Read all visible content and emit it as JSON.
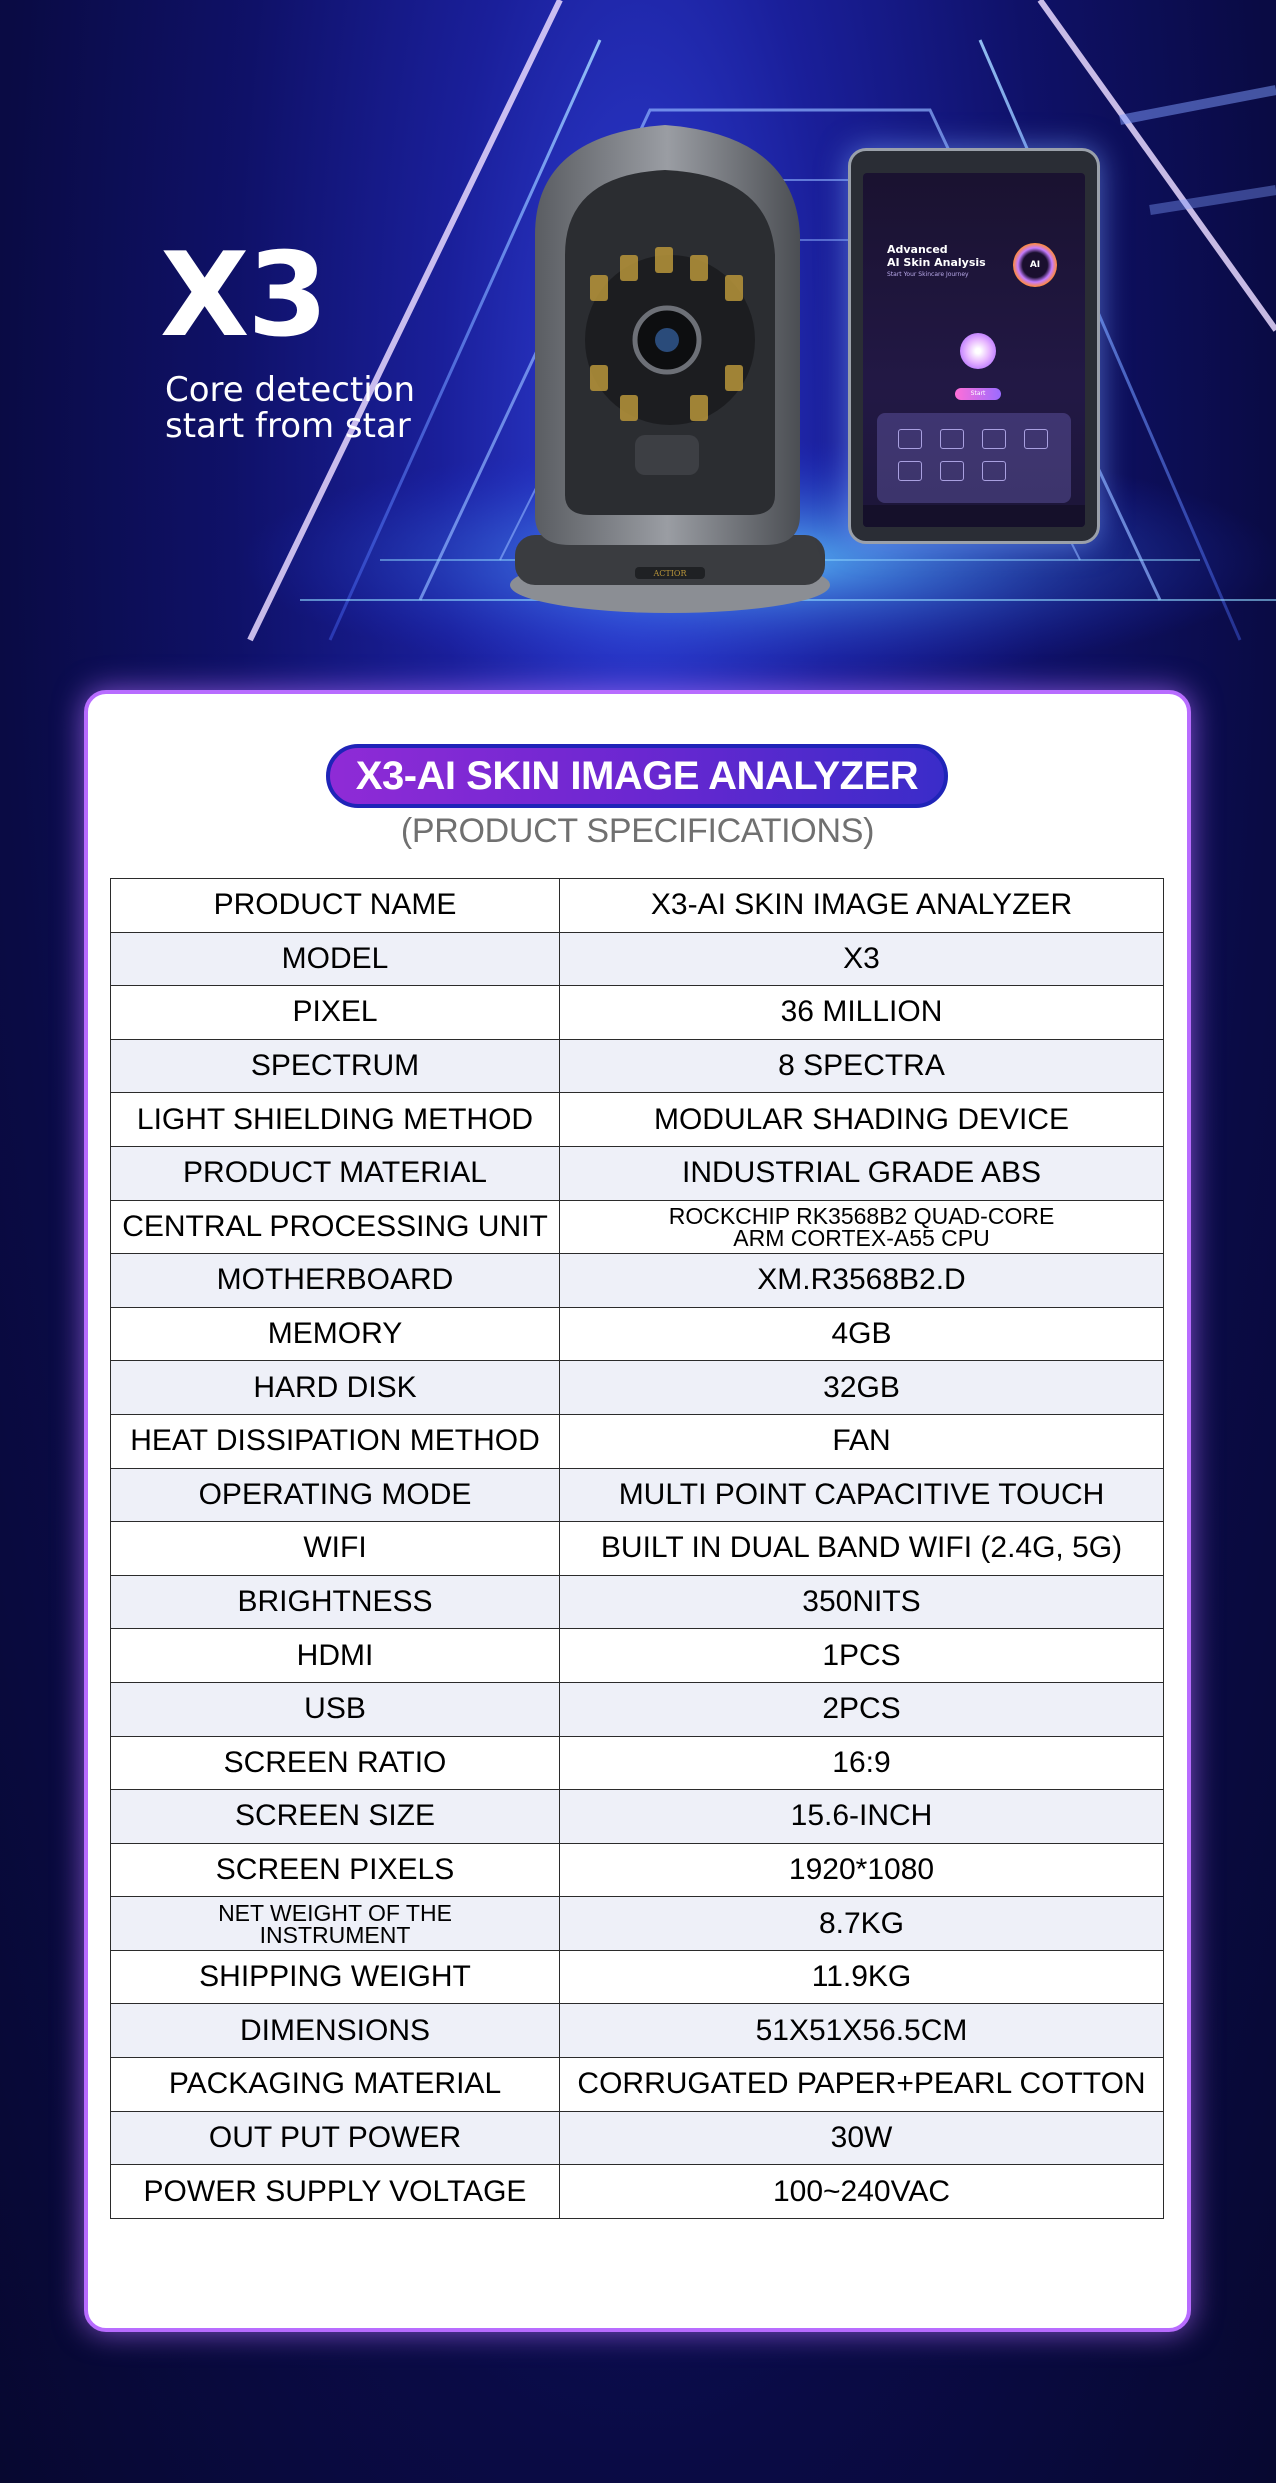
{
  "hero": {
    "title": "X3",
    "subtitle_line1": "Core detection",
    "subtitle_line2": "start from star",
    "tablet": {
      "title_line1": "Advanced",
      "title_line2": "AI Skin Analysis",
      "tagline": "Start Your Skincare Journey",
      "ai_badge": "AI",
      "start_button": "Start"
    },
    "device_brand": "ACTIOR"
  },
  "card": {
    "title": "X3-AI SKIN IMAGE ANALYZER",
    "subtitle": "(PRODUCT SPECIFICATIONS)",
    "rows": [
      {
        "label": "PRODUCT NAME",
        "value": "X3-AI SKIN IMAGE ANALYZER"
      },
      {
        "label": "MODEL",
        "value": "X3"
      },
      {
        "label": "PIXEL",
        "value": "36 MILLION"
      },
      {
        "label": "SPECTRUM",
        "value": "8 SPECTRA"
      },
      {
        "label": "LIGHT SHIELDING METHOD",
        "value": "MODULAR SHADING DEVICE"
      },
      {
        "label": "PRODUCT MATERIAL",
        "value": "INDUSTRIAL GRADE ABS"
      },
      {
        "label": "CENTRAL PROCESSING UNIT",
        "value_line1": "ROCKCHIP RK3568B2 QUAD-CORE",
        "value_line2": "ARM CORTEX-A55 CPU"
      },
      {
        "label": "MOTHERBOARD",
        "value": "XM.R3568B2.D"
      },
      {
        "label": "MEMORY",
        "value": "4GB"
      },
      {
        "label": "HARD DISK",
        "value": "32GB"
      },
      {
        "label": "HEAT DISSIPATION METHOD",
        "value": "FAN"
      },
      {
        "label": "OPERATING MODE",
        "value": "MULTI POINT CAPACITIVE TOUCH"
      },
      {
        "label": "WIFI",
        "value": "BUILT IN DUAL BAND WIFI (2.4G, 5G)"
      },
      {
        "label": "BRIGHTNESS",
        "value": "350NITS"
      },
      {
        "label": "HDMI",
        "value": "1PCS"
      },
      {
        "label": "USB",
        "value": "2PCS"
      },
      {
        "label": "SCREEN RATIO",
        "value": "16:9"
      },
      {
        "label": "SCREEN SIZE",
        "value": "15.6-INCH"
      },
      {
        "label": "SCREEN PIXELS",
        "value": "1920*1080"
      },
      {
        "label_line1": "NET WEIGHT OF THE",
        "label_line2": "INSTRUMENT",
        "value": "8.7KG"
      },
      {
        "label": "SHIPPING WEIGHT",
        "value": "11.9KG"
      },
      {
        "label": "DIMENSIONS",
        "value": "51X51X56.5CM"
      },
      {
        "label": "PACKAGING MATERIAL",
        "value": "CORRUGATED PAPER+PEARL COTTON"
      },
      {
        "label": "OUT PUT POWER",
        "value": "30W"
      },
      {
        "label": "POWER SUPPLY VOLTAGE",
        "value": "100~240VAC"
      }
    ]
  }
}
